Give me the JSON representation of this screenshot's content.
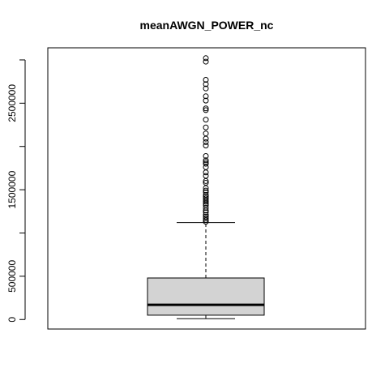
{
  "chart_data": {
    "type": "box",
    "title": "meanAWGN_POWER_nc",
    "xlabel": "",
    "ylabel": "",
    "ylim": [
      -110000,
      3140000
    ],
    "y_ticks": [
      0,
      500000,
      1000000,
      1500000,
      2000000,
      2500000,
      3000000
    ],
    "y_tick_labels": [
      "0",
      "500000",
      "",
      "1500000",
      "",
      "2500000",
      ""
    ],
    "box": {
      "whisker_low": 10000,
      "q1": 50000,
      "median": 170000,
      "q3": 480000,
      "whisker_high": 1120000,
      "fill": "#d3d3d3"
    },
    "outliers": [
      1130000,
      1150000,
      1170000,
      1190000,
      1210000,
      1240000,
      1260000,
      1290000,
      1320000,
      1340000,
      1360000,
      1380000,
      1400000,
      1420000,
      1440000,
      1470000,
      1490000,
      1520000,
      1580000,
      1600000,
      1660000,
      1700000,
      1760000,
      1800000,
      1820000,
      1840000,
      1890000,
      2010000,
      2050000,
      2090000,
      2150000,
      2220000,
      2310000,
      2420000,
      2440000,
      2530000,
      2580000,
      2670000,
      2720000,
      2770000,
      2980000,
      3020000
    ]
  }
}
